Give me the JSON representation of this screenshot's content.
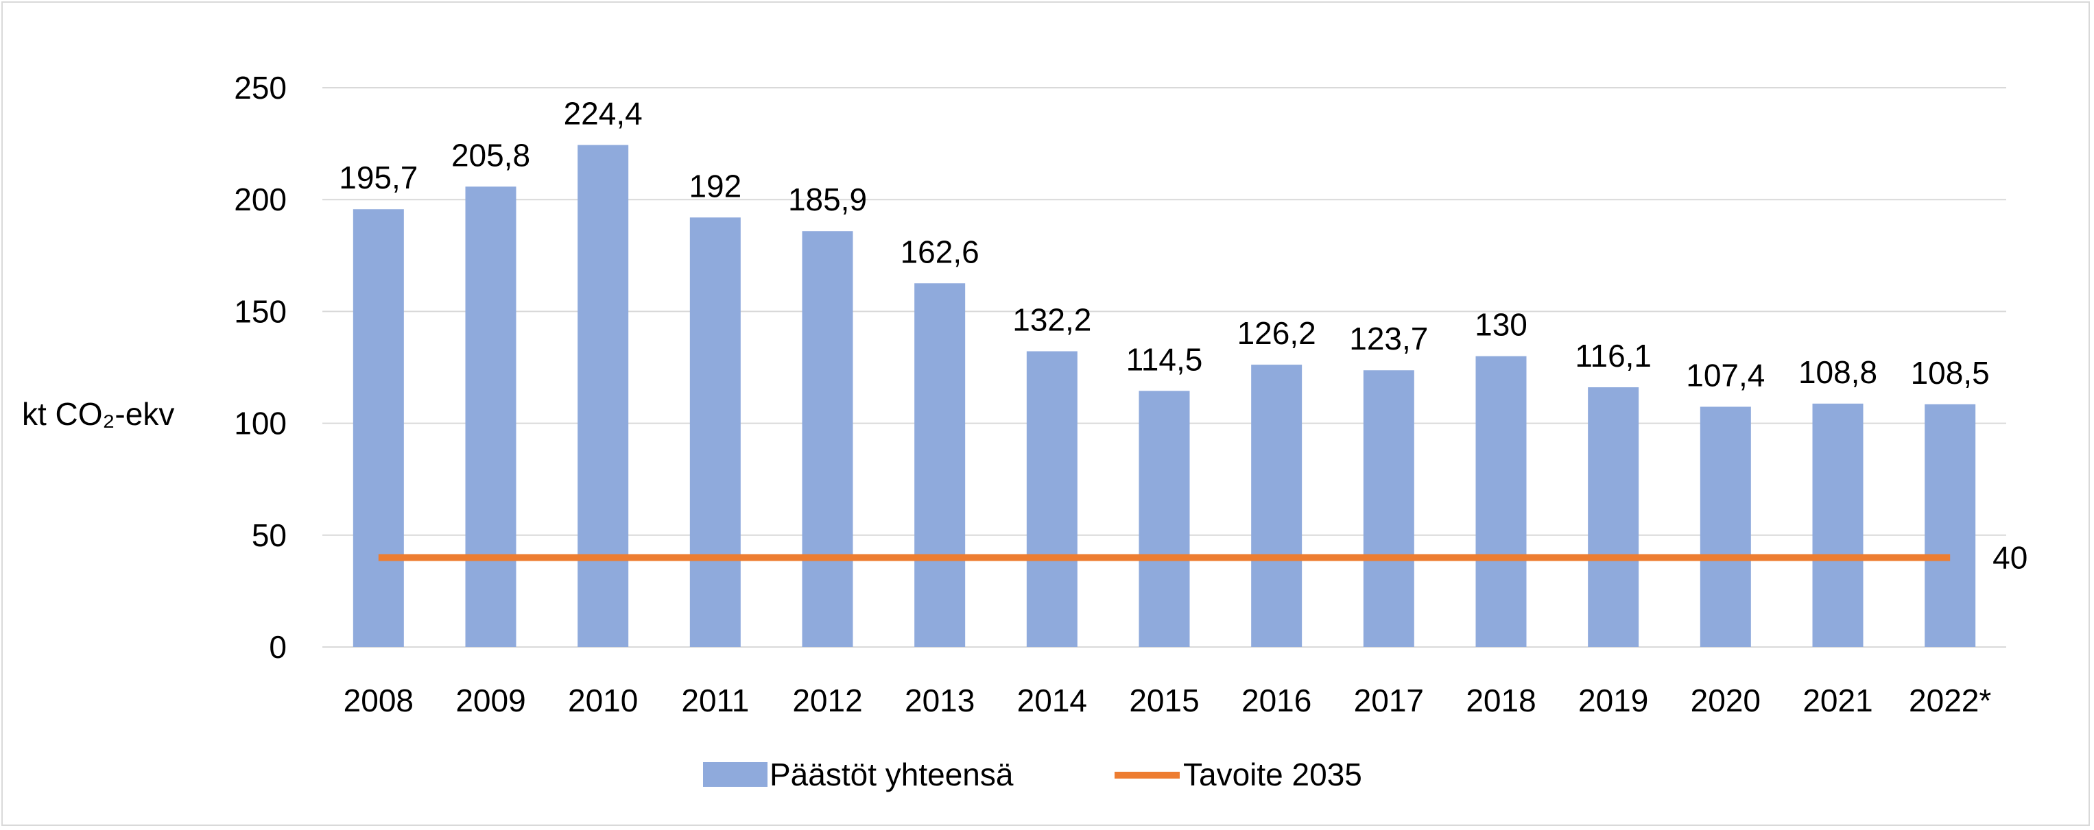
{
  "chart_data": {
    "type": "bar",
    "title": "",
    "xlabel": "",
    "ylabel": "kt CO₂-ekv",
    "ylim": [
      0,
      250
    ],
    "yticks": [
      0,
      50,
      100,
      150,
      200,
      250
    ],
    "grid": true,
    "legend": "bottom",
    "categories": [
      "2008",
      "2009",
      "2010",
      "2011",
      "2012",
      "2013",
      "2014",
      "2015",
      "2016",
      "2017",
      "2018",
      "2019",
      "2020",
      "2021",
      "2022*"
    ],
    "series": [
      {
        "name": "Päästöt yhteensä",
        "type": "bar",
        "color": "#8faadc",
        "values": [
          195.7,
          205.8,
          224.4,
          192,
          185.9,
          162.6,
          132.2,
          114.5,
          126.2,
          123.7,
          130,
          116.1,
          107.4,
          108.8,
          108.5
        ],
        "labels": [
          "195,7",
          "205,8",
          "224,4",
          "192",
          "185,9",
          "162,6",
          "132,2",
          "114,5",
          "126,2",
          "123,7",
          "130",
          "116,1",
          "107,4",
          "108,8",
          "108,5"
        ]
      },
      {
        "name": "Tavoite 2035",
        "type": "line",
        "color": "#ed7d31",
        "values": [
          40,
          40,
          40,
          40,
          40,
          40,
          40,
          40,
          40,
          40,
          40,
          40,
          40,
          40,
          40
        ],
        "end_label": "40"
      }
    ]
  }
}
